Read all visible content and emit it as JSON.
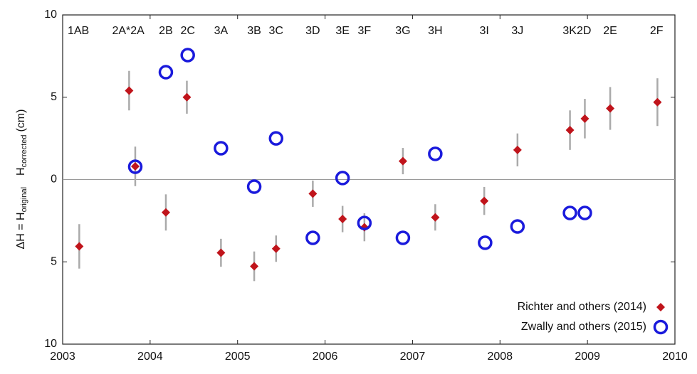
{
  "chart_data": {
    "type": "scatter",
    "y_label": [
      "ΔH = H",
      "original",
      "H",
      "corrected",
      "(cm)"
    ],
    "xlim": [
      2003,
      2010
    ],
    "xticks": [
      2003,
      2004,
      2005,
      2006,
      2007,
      2008,
      2009,
      2010
    ],
    "ylim": [
      -10,
      10
    ],
    "yticks": [
      {
        "value": 10,
        "label": "10"
      },
      {
        "value": 5,
        "label": "5"
      },
      0,
      {
        "value": -5,
        "label": "5"
      },
      {
        "value": -10,
        "label": "10"
      }
    ],
    "zero_line": true,
    "legend": "lower right",
    "campaigns": [
      {
        "label": "1AB",
        "x": 2003.18
      },
      {
        "label": "2A*2A",
        "x": 2003.75
      },
      {
        "label": "2B",
        "x": 2004.18
      },
      {
        "label": "2C",
        "x": 2004.43
      },
      {
        "label": "3A",
        "x": 2004.81
      },
      {
        "label": "3B",
        "x": 2005.19
      },
      {
        "label": "3C",
        "x": 2005.44
      },
      {
        "label": "3D",
        "x": 2005.86
      },
      {
        "label": "3E",
        "x": 2006.2
      },
      {
        "label": "3F",
        "x": 2006.45
      },
      {
        "label": "3G",
        "x": 2006.89
      },
      {
        "label": "3H",
        "x": 2007.26
      },
      {
        "label": "3I",
        "x": 2007.82
      },
      {
        "label": "3J",
        "x": 2008.2
      },
      {
        "label": "3K2D",
        "x": 2008.88
      },
      {
        "label": "2E",
        "x": 2009.26
      },
      {
        "label": "2F",
        "x": 2009.79
      }
    ],
    "series": [
      {
        "name": "Richter and others (2014)",
        "color": "#c0141b",
        "marker": "diamond",
        "error_color": "#aaaaaa",
        "x": [
          2003.19,
          2003.76,
          2003.83,
          2004.18,
          2004.42,
          2004.81,
          2005.19,
          2005.44,
          2005.86,
          2006.2,
          2006.45,
          2006.89,
          2007.26,
          2007.82,
          2008.2,
          2008.8,
          2008.97,
          2009.26,
          2009.8
        ],
        "values": [
          -4.06,
          5.4,
          0.8,
          -2.0,
          5.0,
          -4.45,
          -5.27,
          -4.2,
          -0.86,
          -2.4,
          -2.9,
          1.12,
          -2.3,
          -1.3,
          1.8,
          3.0,
          3.7,
          4.32,
          4.7
        ],
        "errors": [
          1.35,
          1.2,
          1.2,
          1.1,
          1.0,
          0.85,
          0.9,
          0.8,
          0.8,
          0.8,
          0.85,
          0.8,
          0.8,
          0.85,
          1.0,
          1.2,
          1.2,
          1.3,
          1.45
        ]
      },
      {
        "name": "Zwally and others (2015)",
        "color": "#1a1adc",
        "marker": "circle",
        "x": [
          2003.83,
          2004.18,
          2004.43,
          2004.81,
          2005.19,
          2005.44,
          2005.86,
          2006.2,
          2006.45,
          2006.89,
          2007.26,
          2007.83,
          2008.2,
          2008.8,
          2008.97
        ],
        "values": [
          0.78,
          6.52,
          7.56,
          1.9,
          -0.43,
          2.5,
          -3.54,
          0.09,
          -2.64,
          -3.54,
          1.56,
          -3.84,
          -2.85,
          -2.03,
          -2.03
        ]
      }
    ]
  }
}
